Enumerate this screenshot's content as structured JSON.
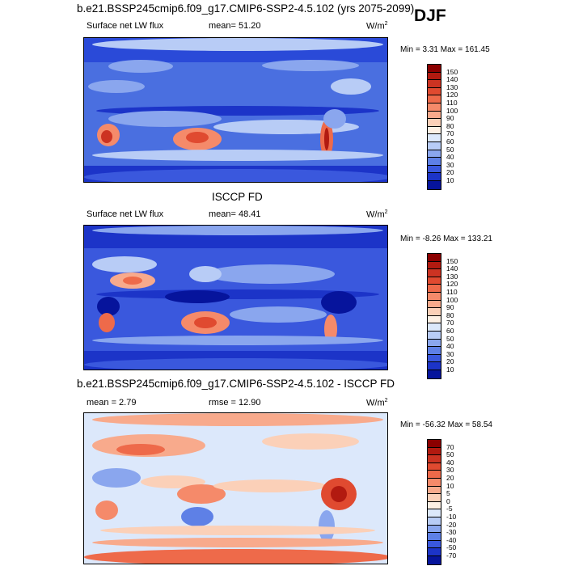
{
  "season": "DJF",
  "panels": [
    {
      "title": "b.e21.BSSP245cmip6.f09_g17.CMIP6-SSP2-4.5.102 (yrs 2075-2099)",
      "left_label": "Surface net LW flux",
      "mid_label": "mean=  51.20",
      "units": "W/m",
      "units_sup": "2",
      "minmax": "Min =   3.31 Max = 161.45",
      "colorbar": {
        "ticks": [
          "150",
          "140",
          "130",
          "120",
          "110",
          "100",
          "90",
          "80",
          "70",
          "60",
          "50",
          "40",
          "30",
          "20",
          "10"
        ],
        "colors": [
          "#8b0000",
          "#b21a10",
          "#cc3322",
          "#e04a30",
          "#ee6a4a",
          "#f58a6a",
          "#f8aa8c",
          "#fbd0b8",
          "#fdf0e4",
          "#dce8fb",
          "#b8ccf6",
          "#8aa6ee",
          "#5e80e6",
          "#3a58dd",
          "#1c34c8",
          "#06149c"
        ]
      }
    },
    {
      "title": "ISCCP FD",
      "left_label": "Surface net LW flux",
      "mid_label": "mean=  48.41",
      "units": "W/m",
      "units_sup": "2",
      "minmax": "Min =  -8.26 Max = 133.21",
      "colorbar": {
        "ticks": [
          "150",
          "140",
          "130",
          "120",
          "110",
          "100",
          "90",
          "80",
          "70",
          "60",
          "50",
          "40",
          "30",
          "20",
          "10"
        ],
        "colors": [
          "#8b0000",
          "#b21a10",
          "#cc3322",
          "#e04a30",
          "#ee6a4a",
          "#f58a6a",
          "#f8aa8c",
          "#fbd0b8",
          "#fdf0e4",
          "#dce8fb",
          "#b8ccf6",
          "#8aa6ee",
          "#5e80e6",
          "#3a58dd",
          "#1c34c8",
          "#06149c"
        ]
      }
    },
    {
      "title": "b.e21.BSSP245cmip6.f09_g17.CMIP6-SSP2-4.5.102 - ISCCP FD",
      "left_label": "mean =   2.79",
      "mid_label": "rmse =  12.90",
      "units": "W/m",
      "units_sup": "2",
      "minmax": "Min = -56.32 Max =  58.54",
      "colorbar": {
        "ticks": [
          "70",
          "50",
          "40",
          "30",
          "20",
          "10",
          "5",
          "0",
          "-5",
          "-10",
          "-20",
          "-30",
          "-40",
          "-50",
          "-70"
        ],
        "colors": [
          "#8b0000",
          "#b21a10",
          "#cc3322",
          "#e04a30",
          "#ee6a4a",
          "#f58a6a",
          "#f8aa8c",
          "#fbd0b8",
          "#fdf0e4",
          "#dce8fb",
          "#b8ccf6",
          "#8aa6ee",
          "#5e80e6",
          "#3a58dd",
          "#1c34c8",
          "#06149c"
        ]
      }
    }
  ]
}
